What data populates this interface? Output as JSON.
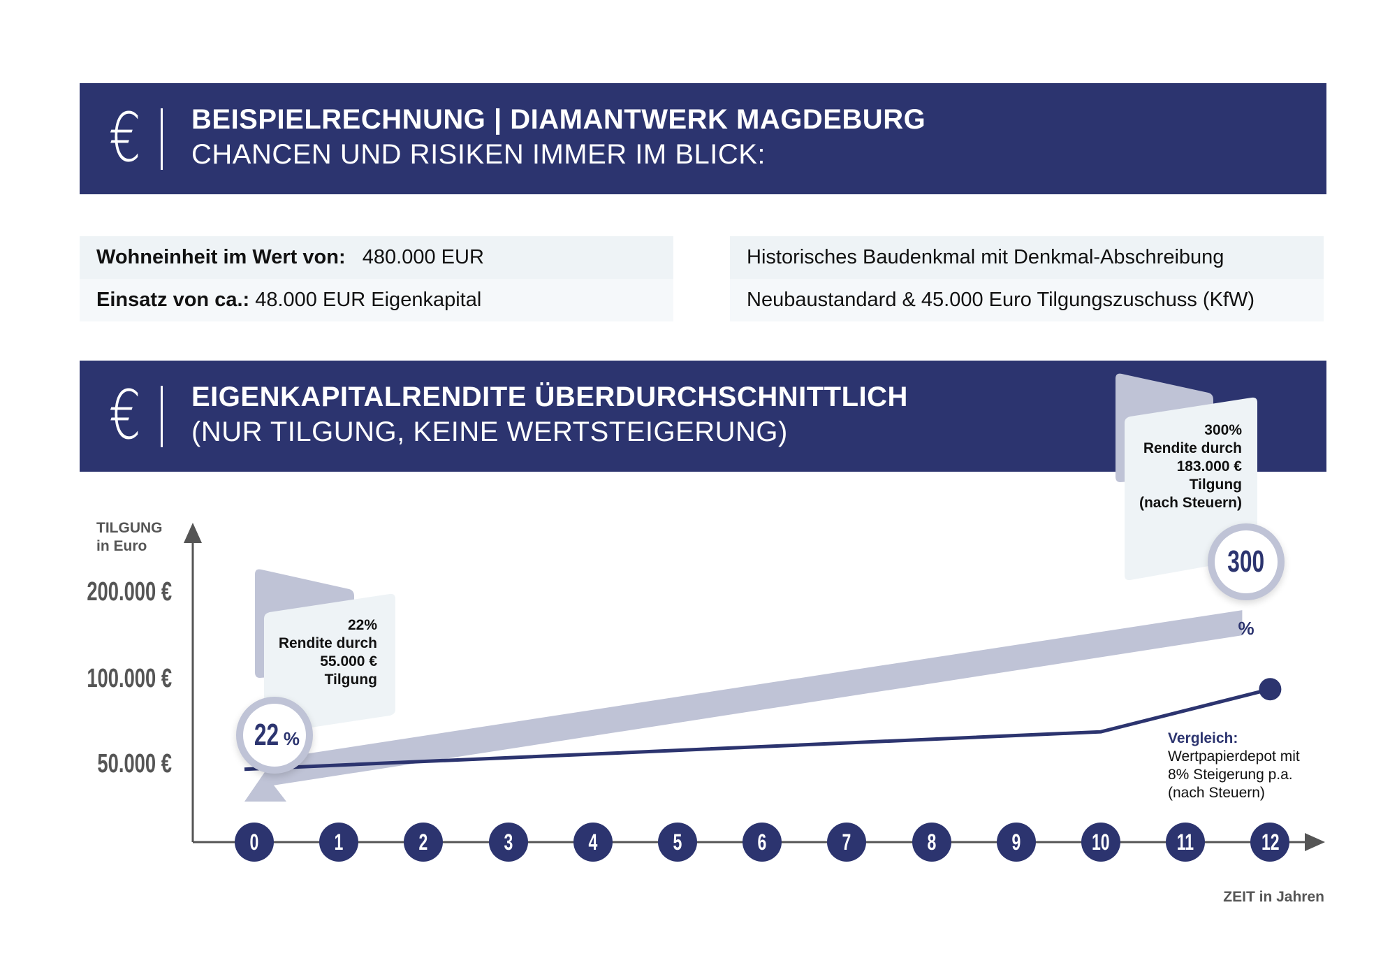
{
  "header1": {
    "icon": "euro-icon",
    "title": "BEISPIELRECHNUNG | DIAMANTWERK MAGDEBURG",
    "subtitle": "CHANCEN UND RISIKEN IMMER IM BLICK:"
  },
  "info_left": {
    "row1_label": "Wohneinheit im Wert von:",
    "row1_value": "480.000 EUR",
    "row2_label": "Einsatz von ca.:",
    "row2_value": "48.000 EUR Eigenkapital"
  },
  "info_right": {
    "row1": "Historisches Baudenkmal mit Denkmal-Abschreibung",
    "row2": "Neubaustandard & 45.000 Euro Tilgungszuschuss (KfW)"
  },
  "header2": {
    "icon": "euro-icon",
    "title": "EIGENKAPITALRENDITE ÜBERDURCHSCHNITTLICH",
    "subtitle": "(NUR TILGUNG, KEINE WERTSTEIGERUNG)"
  },
  "chart_data": {
    "type": "line",
    "ylabel_line1": "TILGUNG",
    "ylabel_line2": "in Euro",
    "xlabel": "ZEIT in Jahren",
    "y_ticks": [
      "200.000 €",
      "100.000 €",
      "50.000 €"
    ],
    "x_ticks": [
      "0",
      "1",
      "2",
      "3",
      "4",
      "5",
      "6",
      "7",
      "8",
      "9",
      "10",
      "11",
      "12"
    ],
    "series": [
      {
        "name": "Tilgung",
        "x": [
          0,
          12
        ],
        "values": [
          55000,
          183000
        ],
        "color": "#bfc3d6"
      },
      {
        "name": "Wertpapierdepot",
        "x": [
          0,
          10,
          12
        ],
        "values": [
          48000,
          70000,
          95000
        ],
        "color": "#2c346f"
      }
    ],
    "callout_start": {
      "line1": "22%",
      "line2": "Rendite durch",
      "line3": "55.000 €",
      "line4": "Tilgung",
      "bubble_num": "22",
      "bubble_pct": "%"
    },
    "callout_end": {
      "line1": "300%",
      "line2": "Rendite durch",
      "line3": "183.000 €",
      "line4": "Tilgung",
      "line5": "(nach Steuern)",
      "bubble_num": "300",
      "bubble_pct": "%"
    },
    "comparison": {
      "title": "Vergleich:",
      "line1": "Wertpapierdepot mit",
      "line2": "8% Steigerung p.a.",
      "line3": "(nach Steuern)"
    }
  }
}
